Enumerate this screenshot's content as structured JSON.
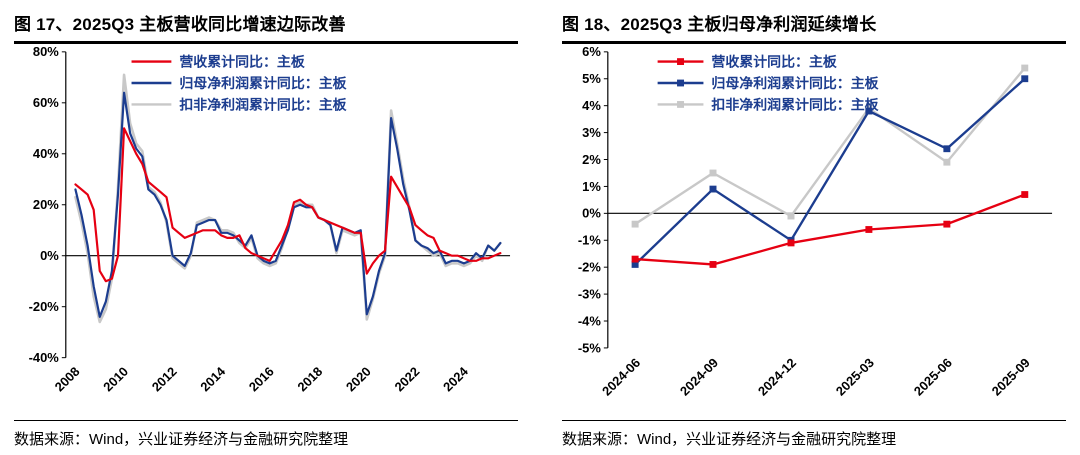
{
  "panels": [
    {
      "title": "图 17、2025Q3 主板营收同比增速边际改善",
      "source": "数据来源：Wind，兴业证券经济与金融研究院整理"
    },
    {
      "title": "图 18、2025Q3 主板归母净利润延续增长",
      "source": "数据来源：Wind，兴业证券经济与金融研究院整理"
    }
  ],
  "colors": {
    "red": "#e60012",
    "navy": "#1c3d8f",
    "gray": "#c8c8c8",
    "legend_text": "#1c3d8f",
    "axis": "#000000"
  },
  "chart_data": [
    {
      "type": "line",
      "title": "图 17、2025Q3 主板营收同比增速边际改善",
      "legend_position": "top-inside",
      "legend_text_color": "#1c3d8f",
      "grid": false,
      "ylim": [
        -40,
        80
      ],
      "yticks": [
        -40,
        -20,
        0,
        20,
        40,
        60,
        80
      ],
      "ytick_labels": [
        "-40%",
        "-20%",
        "0%",
        "20%",
        "40%",
        "60%",
        "80%"
      ],
      "x": [
        2008,
        2008.25,
        2008.5,
        2008.75,
        2009,
        2009.25,
        2009.5,
        2009.75,
        2010,
        2010.25,
        2010.5,
        2010.75,
        2011,
        2011.25,
        2011.5,
        2011.75,
        2012,
        2012.25,
        2012.5,
        2012.75,
        2013,
        2013.25,
        2013.5,
        2013.75,
        2014,
        2014.25,
        2014.5,
        2014.75,
        2015,
        2015.25,
        2015.5,
        2015.75,
        2016,
        2016.25,
        2016.5,
        2016.75,
        2017,
        2017.25,
        2017.5,
        2017.75,
        2018,
        2018.25,
        2018.5,
        2018.75,
        2019,
        2019.25,
        2019.5,
        2019.75,
        2020,
        2020.25,
        2020.5,
        2020.75,
        2021,
        2021.25,
        2021.5,
        2021.75,
        2022,
        2022.25,
        2022.5,
        2022.75,
        2023,
        2023.25,
        2023.5,
        2023.75,
        2024,
        2024.25,
        2024.5,
        2024.75,
        2025,
        2025.25,
        2025.5
      ],
      "xticks": [
        2008,
        2010,
        2012,
        2014,
        2016,
        2018,
        2020,
        2022,
        2024
      ],
      "xtick_labels": [
        "2008",
        "2010",
        "2012",
        "2014",
        "2016",
        "2018",
        "2020",
        "2022",
        "2024"
      ],
      "series": [
        {
          "name": "营收累计同比：主板",
          "color": "#e60012",
          "stroke_width": 2.2,
          "values": [
            28,
            26,
            24,
            18,
            -6,
            -10,
            -9,
            0,
            50,
            45,
            40,
            36,
            29,
            27,
            25,
            23,
            11,
            9,
            7,
            8,
            9,
            10,
            10,
            10,
            8,
            7,
            7,
            8,
            3,
            1,
            0,
            -1,
            -2,
            2,
            6,
            12,
            21,
            22,
            20,
            19,
            15,
            14,
            13,
            12,
            11,
            10,
            9,
            9,
            -7,
            -3,
            0,
            2,
            31,
            27,
            23,
            19,
            12,
            10,
            8,
            7,
            2,
            1,
            0,
            0,
            -1,
            -2,
            -2,
            -1,
            -1,
            0,
            1
          ]
        },
        {
          "name": "归母净利润累计同比：主板",
          "color": "#1c3d8f",
          "stroke_width": 2.2,
          "values": [
            26,
            16,
            4,
            -12,
            -24,
            -18,
            -6,
            24,
            64,
            48,
            42,
            39,
            26,
            24,
            20,
            14,
            0,
            -2,
            -4,
            1,
            12,
            13,
            14,
            14,
            9,
            9,
            8,
            6,
            4,
            8,
            0,
            -2,
            -3,
            -2,
            4,
            10,
            19,
            20,
            19,
            19,
            15,
            14,
            12,
            2,
            11,
            10,
            9,
            10,
            -23,
            -16,
            -6,
            1,
            54,
            42,
            28,
            18,
            6,
            4,
            3,
            1,
            2,
            -3,
            -2,
            -2,
            -3,
            -2,
            1,
            -1,
            4,
            2,
            5
          ]
        },
        {
          "name": "扣非净利润累计同比：主板",
          "color": "#c8c8c8",
          "stroke_width": 2.6,
          "values": [
            23,
            13,
            1,
            -16,
            -26,
            -21,
            -9,
            27,
            71,
            52,
            44,
            41,
            27,
            25,
            21,
            13,
            -1,
            -3,
            -5,
            0,
            13,
            14,
            15,
            14,
            10,
            10,
            9,
            5,
            3,
            7,
            -1,
            -3,
            -4,
            -3,
            3,
            11,
            20,
            21,
            20,
            20,
            15,
            14,
            12,
            1,
            10,
            9,
            8,
            9,
            -25,
            -17,
            -7,
            0,
            57,
            44,
            30,
            19,
            6,
            4,
            2,
            0,
            1,
            -4,
            -3,
            -3,
            -4,
            -3,
            0,
            -2,
            4,
            2,
            5
          ]
        }
      ]
    },
    {
      "type": "line",
      "title": "图 18、2025Q3 主板归母净利润延续增长",
      "legend_position": "top-inside",
      "legend_text_color": "#1c3d8f",
      "grid": false,
      "ylim": [
        -5,
        6
      ],
      "yticks": [
        -5,
        -4,
        -3,
        -2,
        -1,
        0,
        1,
        2,
        3,
        4,
        5,
        6
      ],
      "ytick_labels": [
        "-5%",
        "-4%",
        "-3%",
        "-2%",
        "-1%",
        "0%",
        "1%",
        "2%",
        "3%",
        "4%",
        "5%",
        "6%"
      ],
      "categories": [
        "2024-06",
        "2024-09",
        "2024-12",
        "2025-03",
        "2025-06",
        "2025-09"
      ],
      "xtick_labels": [
        "2024-06",
        "2024-09",
        "2024-12",
        "2025-03",
        "2025-06",
        "2025-09"
      ],
      "series": [
        {
          "name": "营收累计同比：主板",
          "color": "#e60012",
          "marker": "square",
          "stroke_width": 2.4,
          "values": [
            -1.7,
            -1.9,
            -1.1,
            -0.6,
            -0.4,
            0.7
          ]
        },
        {
          "name": "归母净利润累计同比：主板",
          "color": "#1c3d8f",
          "marker": "square",
          "stroke_width": 2.4,
          "values": [
            -1.9,
            0.9,
            -1.0,
            3.8,
            2.4,
            5.0
          ]
        },
        {
          "name": "扣非净利润累计同比：主板",
          "color": "#c8c8c8",
          "marker": "square",
          "stroke_width": 2.4,
          "values": [
            -0.4,
            1.5,
            -0.1,
            3.9,
            1.9,
            5.4
          ]
        }
      ]
    }
  ]
}
